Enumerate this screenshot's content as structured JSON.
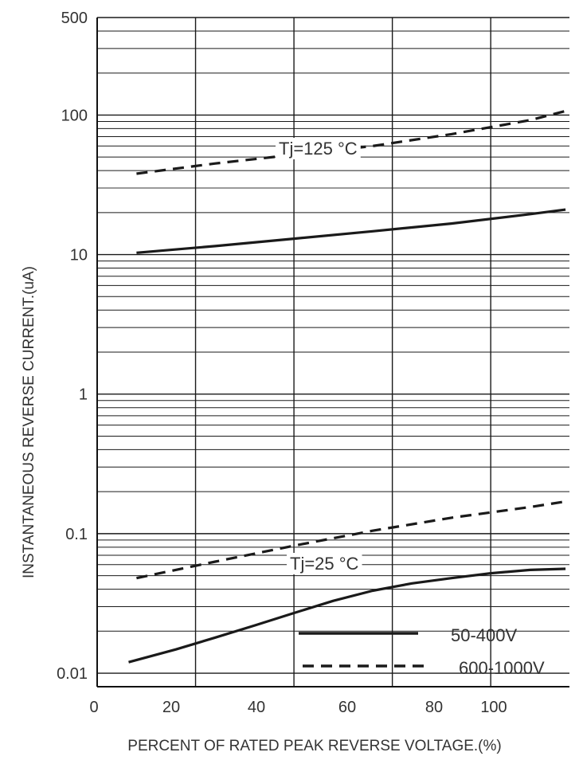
{
  "chart_data": {
    "type": "line",
    "title": "",
    "xlabel": "PERCENT OF RATED PEAK REVERSE VOLTAGE.(%)",
    "ylabel": "INSTANTANEOUS REVERSE CURRENT.(uA)",
    "yscale": "log",
    "xlim": [
      0,
      120
    ],
    "ylim": [
      0.008,
      500
    ],
    "x_ticks": [
      "0",
      "20",
      "40",
      "60",
      "80",
      "100"
    ],
    "y_ticks": [
      "500",
      "100",
      "10",
      "1",
      "0.1",
      "0.01"
    ],
    "grid": true,
    "legend": {
      "placement": "bottom-right",
      "entries": [
        "50-400V",
        "600-1000V"
      ]
    },
    "annotations": [
      "Tj=125 °C",
      "Tj=25 °C"
    ],
    "series": [
      {
        "name": "600-1000V",
        "group": "Tj=125 °C",
        "style": "dashed",
        "x": [
          10,
          30,
          50,
          70,
          90,
          110,
          119
        ],
        "y": [
          38,
          45,
          52,
          60,
          73,
          92,
          107
        ]
      },
      {
        "name": "50-400V",
        "group": "Tj=125 °C",
        "style": "solid",
        "x": [
          10,
          30,
          50,
          70,
          90,
          110,
          119
        ],
        "y": [
          10.3,
          11.5,
          13,
          14.7,
          16.7,
          19.5,
          21
        ]
      },
      {
        "name": "600-1000V",
        "group": "Tj=25 °C",
        "style": "dashed",
        "x": [
          10,
          30,
          50,
          70,
          90,
          110,
          119
        ],
        "y": [
          0.048,
          0.063,
          0.082,
          0.105,
          0.13,
          0.155,
          0.17
        ]
      },
      {
        "name": "50-400V",
        "group": "Tj=25 °C",
        "style": "solid",
        "x": [
          8,
          20,
          30,
          40,
          50,
          60,
          70,
          80,
          90,
          100,
          110,
          119
        ],
        "y": [
          0.012,
          0.0148,
          0.018,
          0.022,
          0.027,
          0.033,
          0.039,
          0.044,
          0.048,
          0.052,
          0.055,
          0.056
        ]
      }
    ]
  }
}
